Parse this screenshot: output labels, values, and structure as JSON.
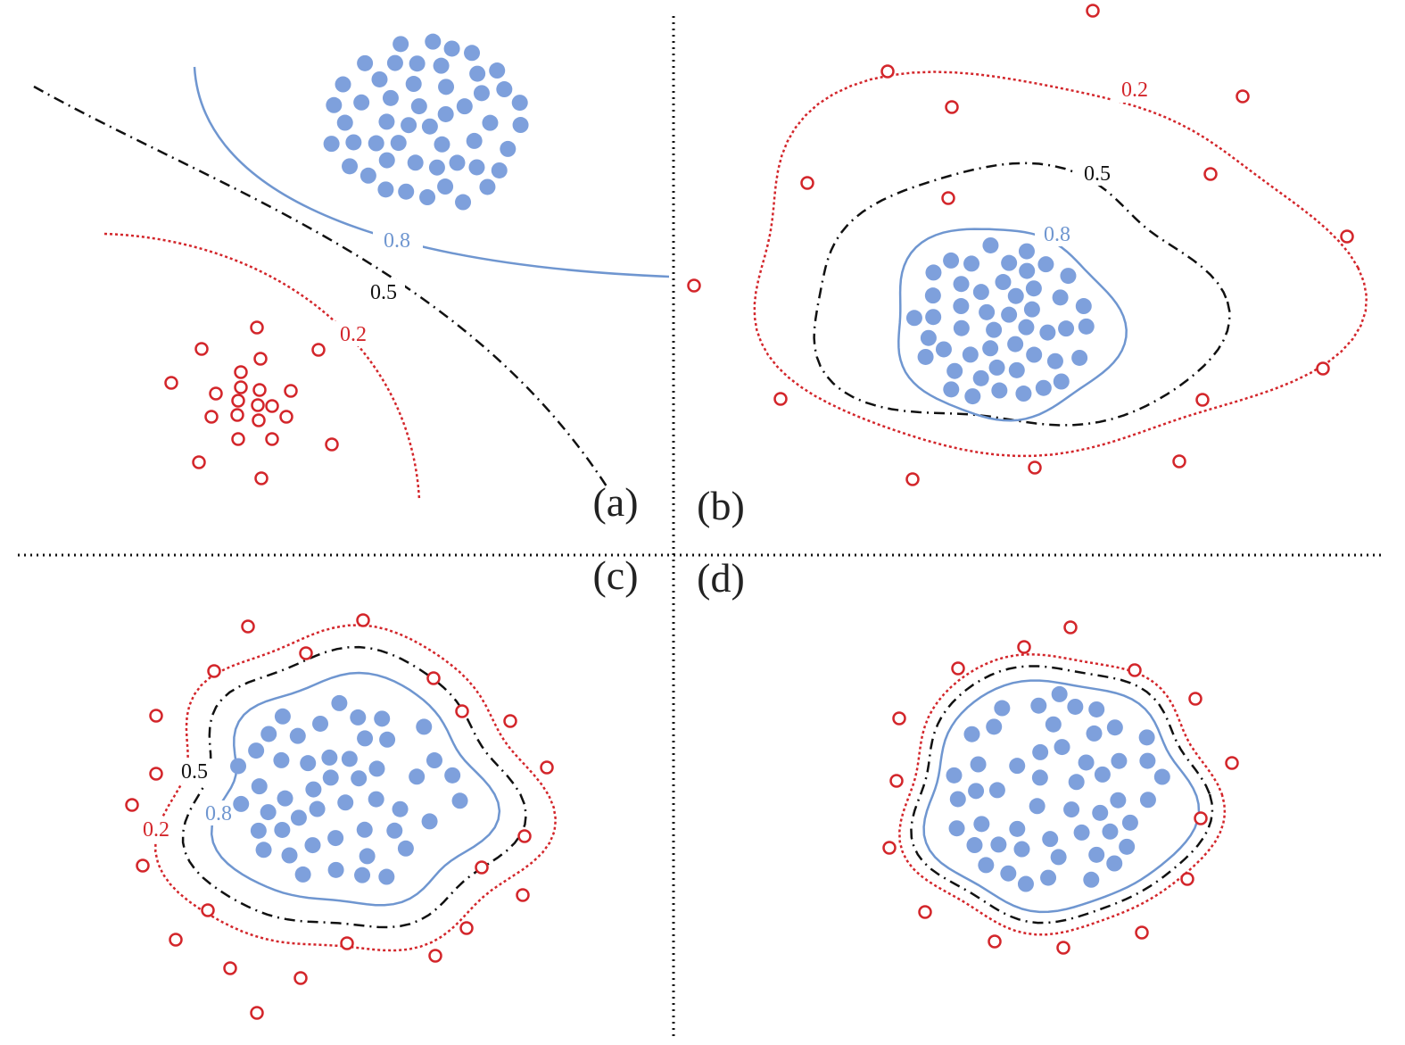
{
  "panels": [
    {
      "label": "(a)",
      "contours": [
        "0.8",
        "0.5",
        "0.2"
      ]
    },
    {
      "label": "(b)",
      "contours": [
        "0.8",
        "0.5",
        "0.2"
      ]
    },
    {
      "label": "(c)",
      "contours": [
        "0.8",
        "0.5",
        "0.2"
      ]
    },
    {
      "label": "(d)"
    }
  ]
}
